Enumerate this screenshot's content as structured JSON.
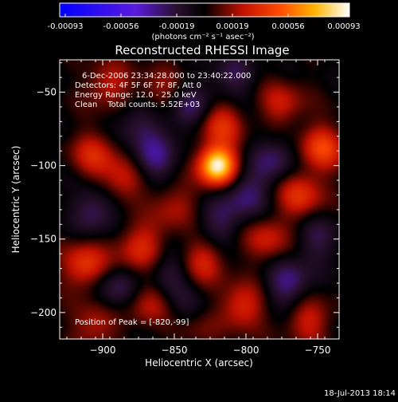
{
  "colorbar": {
    "ticks": [
      "-0.00093",
      "-0.00056",
      "-0.00019",
      "0.00019",
      "0.00056",
      "0.00093"
    ],
    "units": "(photons cm⁻² s⁻¹ asec⁻²)"
  },
  "plot": {
    "title": "Reconstructed RHESSI Image",
    "info_lines": [
      "6-Dec-2006 23:34:28.000 to 23:40:22.000",
      "Detectors: 4F 5F 6F 7F 8F, Att 0",
      "Energy Range: 12.0 - 25.0 keV",
      "Clean    Total counts: 5.52E+03"
    ],
    "peak_label": "Position of Peak = [-820,-99]",
    "footer": "18-Jul-2013 18:14"
  },
  "colors": {
    "background": "#000000",
    "text": "#ffffff"
  },
  "chart_data": {
    "type": "heatmap",
    "title": "Reconstructed RHESSI Image",
    "xlabel": "Heliocentric X (arcsec)",
    "ylabel": "Heliocentric Y (arcsec)",
    "xlim": [
      -930,
      -735
    ],
    "ylim": [
      -218,
      -28
    ],
    "x_ticks": [
      -900,
      -850,
      -800,
      -750
    ],
    "x_tick_labels": [
      "−900",
      "−850",
      "−800",
      "−750"
    ],
    "y_ticks": [
      -50,
      -100,
      -150,
      -200
    ],
    "y_tick_labels": [
      "−50",
      "−100",
      "−150",
      "−200"
    ],
    "colormap": "rhessi",
    "color_range": [
      -0.00093,
      0.00093
    ],
    "peak": {
      "x": -820,
      "y": -99
    },
    "blobs": [
      {
        "x": -820,
        "y": -100,
        "amp": 1.0
      },
      {
        "x": -818,
        "y": -72,
        "amp": 0.38
      },
      {
        "x": -906,
        "y": -92,
        "amp": 0.32
      },
      {
        "x": -912,
        "y": -168,
        "amp": 0.42
      },
      {
        "x": -874,
        "y": -156,
        "amp": 0.38
      },
      {
        "x": -886,
        "y": -110,
        "amp": 0.32
      },
      {
        "x": -905,
        "y": -208,
        "amp": 0.28
      },
      {
        "x": -868,
        "y": -192,
        "amp": 0.3
      },
      {
        "x": -803,
        "y": -196,
        "amp": 0.36
      },
      {
        "x": -785,
        "y": -150,
        "amp": 0.3
      },
      {
        "x": -762,
        "y": -120,
        "amp": 0.38
      },
      {
        "x": -747,
        "y": -88,
        "amp": 0.44
      },
      {
        "x": -756,
        "y": -205,
        "amp": 0.3
      },
      {
        "x": -775,
        "y": -58,
        "amp": 0.28
      },
      {
        "x": -850,
        "y": -128,
        "amp": 0.25
      },
      {
        "x": -830,
        "y": -165,
        "amp": 0.32
      },
      {
        "x": -860,
        "y": -50,
        "amp": 0.22
      },
      {
        "x": -896,
        "y": -45,
        "amp": 0.28
      },
      {
        "x": -837,
        "y": -210,
        "amp": 0.2
      },
      {
        "x": -840,
        "y": -62,
        "amp": -0.3
      },
      {
        "x": -905,
        "y": -130,
        "amp": -0.3
      },
      {
        "x": -865,
        "y": -95,
        "amp": -0.35
      },
      {
        "x": -800,
        "y": -120,
        "amp": -0.32
      },
      {
        "x": -770,
        "y": -180,
        "amp": -0.34
      },
      {
        "x": -780,
        "y": -95,
        "amp": -0.28
      },
      {
        "x": -890,
        "y": -185,
        "amp": -0.28
      },
      {
        "x": -855,
        "y": -175,
        "amp": -0.26
      },
      {
        "x": -810,
        "y": -40,
        "amp": -0.24
      },
      {
        "x": -820,
        "y": -140,
        "amp": -0.22
      },
      {
        "x": -750,
        "y": -150,
        "amp": -0.22
      },
      {
        "x": -875,
        "y": -70,
        "amp": -0.22
      },
      {
        "x": -840,
        "y": -200,
        "amp": -0.18
      }
    ]
  }
}
